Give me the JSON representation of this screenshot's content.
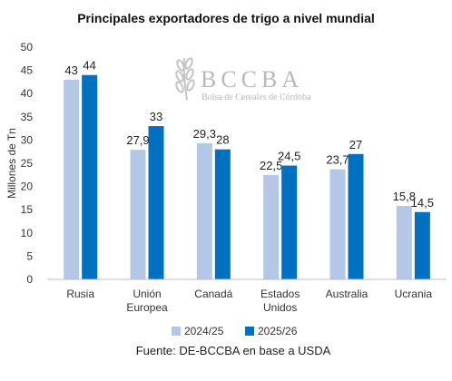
{
  "chart_data": {
    "type": "bar",
    "title": "Principales exportadores de trigo a nivel mundial",
    "ylabel": "Millones de Tn",
    "xlabel": "",
    "ylim": [
      0,
      50
    ],
    "yticks": [
      0,
      5,
      10,
      15,
      20,
      25,
      30,
      35,
      40,
      45,
      50
    ],
    "grid": false,
    "legend_position": "bottom",
    "categories": [
      [
        "Rusia"
      ],
      [
        "Unión",
        "Europea"
      ],
      [
        "Canadá"
      ],
      [
        "Estados",
        "Unidos"
      ],
      [
        "Australia"
      ],
      [
        "Ucrania"
      ]
    ],
    "series": [
      {
        "name": "2024/25",
        "color": "#b4c7e7",
        "values": [
          43,
          27.9,
          29.3,
          22.5,
          23.7,
          15.8
        ],
        "labels": [
          "43",
          "27,9",
          "29,3",
          "22,5",
          "23,7",
          "15,8"
        ]
      },
      {
        "name": "2025/26",
        "color": "#0070c0",
        "values": [
          44,
          33,
          28,
          24.5,
          27,
          14.5
        ],
        "labels": [
          "44",
          "33",
          "28",
          "24,5",
          "27",
          "14,5"
        ]
      }
    ],
    "source": "Fuente: DE-BCCBA en base a USDA"
  },
  "watermark": {
    "logo_text": "BCCBA",
    "logo_subtext": "Bolsa de Cereales de Córdoba",
    "icon": "wheat-icon"
  }
}
